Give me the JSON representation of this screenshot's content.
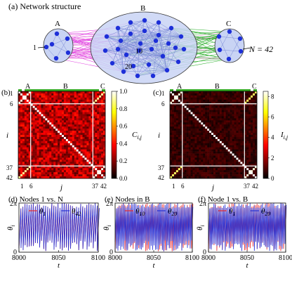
{
  "panel_a": {
    "title": "(a) Network structure",
    "group_labels": [
      "A",
      "B",
      "C"
    ],
    "node_labels": {
      "n1": "1",
      "n10": "10",
      "n20": "20"
    },
    "size_label": "N = 42",
    "colors": {
      "intra": "#7b8bd6",
      "a_to_b": "#e040e0",
      "b_to_c": "#33b233",
      "a_to_c": "#f08fd8",
      "node": "#1d2fd8",
      "group_fill": "#c9d4f4"
    }
  },
  "panel_b": {
    "title": "(b)",
    "group_labels": [
      "A",
      "B",
      "C"
    ],
    "y_ticks": [
      "1",
      "6",
      "37",
      "42"
    ],
    "x_ticks": [
      "1",
      "6",
      "37",
      "42"
    ],
    "xlabel": "j",
    "ylabel": "i",
    "colorbar_label": "C",
    "colorbar_sub": "i,j",
    "colorbar_ticks": [
      "0.0",
      "0.2",
      "0.4",
      "0.6",
      "0.8",
      "1.0"
    ],
    "colormap": "hot"
  },
  "panel_c": {
    "title": "(c)",
    "group_labels": [
      "A",
      "B",
      "C"
    ],
    "y_ticks": [
      "1",
      "6",
      "37",
      "42"
    ],
    "x_ticks": [
      "1",
      "6",
      "37",
      "42"
    ],
    "xlabel": "j",
    "ylabel": "i",
    "colorbar_label": "I",
    "colorbar_sub": "i,j",
    "colorbar_ticks": [
      "0",
      "2",
      "4",
      "6",
      "8"
    ],
    "colormap": "hot"
  },
  "chart_data": [
    {
      "type": "line",
      "title": "(d) Nodes 1 vs. N",
      "xlabel": "t",
      "ylabel": "θ",
      "ylabel_sub": "i",
      "xlim": [
        8000,
        8100
      ],
      "ylim": [
        0,
        6.283
      ],
      "x_ticks": [
        "8000",
        "8050",
        "8100"
      ],
      "y_ticks": [
        "0",
        "2π"
      ],
      "series": [
        {
          "name": "θ",
          "sub": "1",
          "color": "#e8262b"
        },
        {
          "name": "θ",
          "sub": "42",
          "color": "#2430d6"
        }
      ]
    },
    {
      "type": "line",
      "title": "(e) Nodes in B",
      "xlabel": "t",
      "ylabel": "θ",
      "ylabel_sub": "i",
      "xlim": [
        8000,
        8100
      ],
      "ylim": [
        0,
        6.283
      ],
      "x_ticks": [
        "8000",
        "8050",
        "8100"
      ],
      "y_ticks": [
        "0",
        "2π"
      ],
      "series": [
        {
          "name": "θ",
          "sub": "10",
          "color": "#e8262b"
        },
        {
          "name": "θ",
          "sub": "20",
          "color": "#2430d6"
        }
      ]
    },
    {
      "type": "line",
      "title": "(f) Node 1 vs. B",
      "xlabel": "t",
      "ylabel": "θ",
      "ylabel_sub": "i",
      "xlim": [
        8000,
        8100
      ],
      "ylim": [
        0,
        6.283
      ],
      "x_ticks": [
        "8000",
        "8050",
        "8100"
      ],
      "y_ticks": [
        "0",
        "2π"
      ],
      "series": [
        {
          "name": "θ",
          "sub": "1",
          "color": "#e8262b"
        },
        {
          "name": "θ",
          "sub": "20",
          "color": "#2430d6"
        }
      ]
    }
  ]
}
